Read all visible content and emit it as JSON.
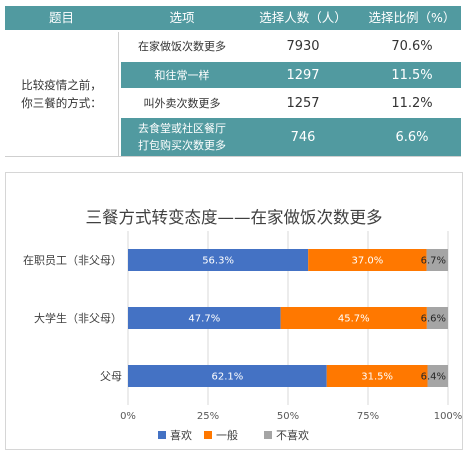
{
  "table": {
    "headers": [
      "题目",
      "选项",
      "选择人数（人）",
      "选择比例（%）"
    ],
    "question_lines": [
      "比较疫情之前，",
      "你三餐的方式："
    ],
    "rows": [
      {
        "option_lines": [
          "在家做饭次数更多"
        ],
        "count": "7930",
        "pct": "70.6%",
        "style": "white"
      },
      {
        "option_lines": [
          "和往常一样"
        ],
        "count": "1297",
        "pct": "11.5%",
        "style": "teal"
      },
      {
        "option_lines": [
          "叫外卖次数更多"
        ],
        "count": "1257",
        "pct": "11.2%",
        "style": "white"
      },
      {
        "option_lines": [
          "去食堂或社区餐厅",
          "打包购买次数更多"
        ],
        "count": "746",
        "pct": "6.6%",
        "style": "teal"
      }
    ]
  },
  "chart_data": {
    "type": "bar",
    "orientation": "horizontal",
    "stacked": true,
    "title": "三餐方式转变态度——在家做饭次数更多",
    "categories": [
      "在职员工（非父母）",
      "大学生（非父母）",
      "父母"
    ],
    "series": [
      {
        "name": "喜欢",
        "color": "#4472c4",
        "values": [
          56.3,
          47.7,
          62.1
        ],
        "labels": [
          "56.3%",
          "47.7%",
          "62.1%"
        ]
      },
      {
        "name": "一般",
        "color": "#ff7800",
        "values": [
          37.0,
          45.7,
          31.5
        ],
        "labels": [
          "37.0%",
          "45.7%",
          "31.5%"
        ]
      },
      {
        "name": "不喜欢",
        "color": "#a5a5a5",
        "values": [
          6.7,
          6.6,
          6.4
        ],
        "labels": [
          "6.7%",
          "6.6%",
          "6.4%"
        ]
      }
    ],
    "xlim": [
      0,
      100
    ],
    "x_ticks": [
      "0%",
      "25%",
      "50%",
      "75%",
      "100%"
    ],
    "legend_position": "bottom",
    "grid": true
  }
}
